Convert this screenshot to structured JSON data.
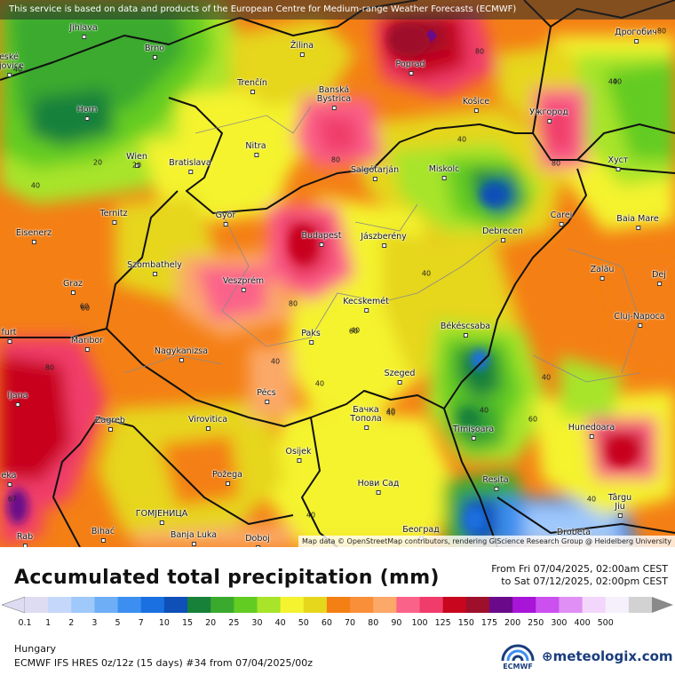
{
  "header": {
    "notice": "This service is based on data and products of the European Centre for Medium-range Weather Forecasts (ECMWF)"
  },
  "map": {
    "attribution": "Map data © OpenStreetMap contributors, rendering GIScience Research Group @ Heidelberg University",
    "cities": [
      {
        "name": "Jihlava"
      },
      {
        "name": "Brno"
      },
      {
        "name": "eské\nějovice"
      },
      {
        "name": "Horn"
      },
      {
        "name": "Wien"
      },
      {
        "name": "Bratislava"
      },
      {
        "name": "Trenčín"
      },
      {
        "name": "Žilina"
      },
      {
        "name": "Poprad"
      },
      {
        "name": "Banská\nBystrica"
      },
      {
        "name": "Nitra"
      },
      {
        "name": "Košice"
      },
      {
        "name": "Ужгород"
      },
      {
        "name": "Дрогобич"
      },
      {
        "name": "Хуст"
      },
      {
        "name": "Salgótarján"
      },
      {
        "name": "Miskolc"
      },
      {
        "name": "Ternitz"
      },
      {
        "name": "Győr"
      },
      {
        "name": "Eisenerz"
      },
      {
        "name": "Budapest"
      },
      {
        "name": "Jászberény"
      },
      {
        "name": "Debrecen"
      },
      {
        "name": "Carei"
      },
      {
        "name": "Baia Mare"
      },
      {
        "name": "Szombathely"
      },
      {
        "name": "Graz"
      },
      {
        "name": "Veszprém"
      },
      {
        "name": "Zalău"
      },
      {
        "name": "Dej"
      },
      {
        "name": "Kecskemét"
      },
      {
        "name": "Cluj-Napoca"
      },
      {
        "name": "furt"
      },
      {
        "name": "Maribor"
      },
      {
        "name": "Paks"
      },
      {
        "name": "Békéscsaba"
      },
      {
        "name": "Nagykanizsa"
      },
      {
        "name": "ljana"
      },
      {
        "name": "Szeged"
      },
      {
        "name": "Pécs"
      },
      {
        "name": "Zagreb"
      },
      {
        "name": "Virovitica"
      },
      {
        "name": "Бачка\nТопола"
      },
      {
        "name": "Timişoara"
      },
      {
        "name": "Hunedoara"
      },
      {
        "name": "Osijek"
      },
      {
        "name": "Požega"
      },
      {
        "name": "Нови Сад"
      },
      {
        "name": "Reșița"
      },
      {
        "name": "eka"
      },
      {
        "name": "Târgu\nJiu"
      },
      {
        "name": "ГОМЈЕНИЦА"
      },
      {
        "name": "Bihać"
      },
      {
        "name": "Banja Luka"
      },
      {
        "name": "Doboj"
      },
      {
        "name": "Београд"
      },
      {
        "name": "Drobeta"
      },
      {
        "name": "Rab"
      }
    ],
    "contour_labels": [
      {
        "text": "40"
      },
      {
        "text": "20"
      },
      {
        "text": "40"
      },
      {
        "text": "20"
      },
      {
        "text": "80"
      },
      {
        "text": "80"
      },
      {
        "text": "40"
      },
      {
        "text": "40"
      },
      {
        "text": "80"
      },
      {
        "text": "80"
      },
      {
        "text": "40"
      },
      {
        "text": "40"
      },
      {
        "text": "60"
      },
      {
        "text": "80"
      },
      {
        "text": "60"
      },
      {
        "text": "40"
      },
      {
        "text": "40"
      },
      {
        "text": "40"
      },
      {
        "text": "80"
      },
      {
        "text": "40"
      },
      {
        "text": "40"
      },
      {
        "text": "40"
      },
      {
        "text": "60"
      },
      {
        "text": "40"
      },
      {
        "text": "40"
      },
      {
        "text": "60"
      },
      {
        "text": "40"
      },
      {
        "text": "67"
      }
    ]
  },
  "legend": {
    "title": "Accumulated total precipitation (mm)",
    "period_from": "From Fri 07/04/2025, 02:00am CEST",
    "period_to": "to Sat 07/12/2025, 02:00pm CEST",
    "ticks": [
      "0.1",
      "1",
      "2",
      "3",
      "5",
      "7",
      "10",
      "15",
      "20",
      "25",
      "30",
      "40",
      "50",
      "60",
      "70",
      "80",
      "90",
      "100",
      "125",
      "150",
      "175",
      "200",
      "250",
      "300",
      "400",
      "500"
    ],
    "colors": [
      "#dedcf3",
      "#c5d8fb",
      "#9fc8fb",
      "#6daef6",
      "#3c8ff0",
      "#1a70e0",
      "#0e4fb8",
      "#17813a",
      "#3aaa2e",
      "#63cc22",
      "#a7e42a",
      "#f4f32f",
      "#e6d61c",
      "#f47f15",
      "#fa8f3a",
      "#fba868",
      "#fb628a",
      "#f03c6b",
      "#c8061e",
      "#9e0f2c",
      "#6a0a8a",
      "#a814d8",
      "#cc4ff0",
      "#e08ff5",
      "#f3d6fb",
      "#f6f0fc",
      "#d2d2d2"
    ],
    "region": "Hungary",
    "model": "ECMWF IFS HRES 0z/12z (15 days) #34 from  07/04/2025/00z"
  },
  "logos": {
    "ecmwf": "ECMWF",
    "meteologix": "meteologix.com"
  }
}
